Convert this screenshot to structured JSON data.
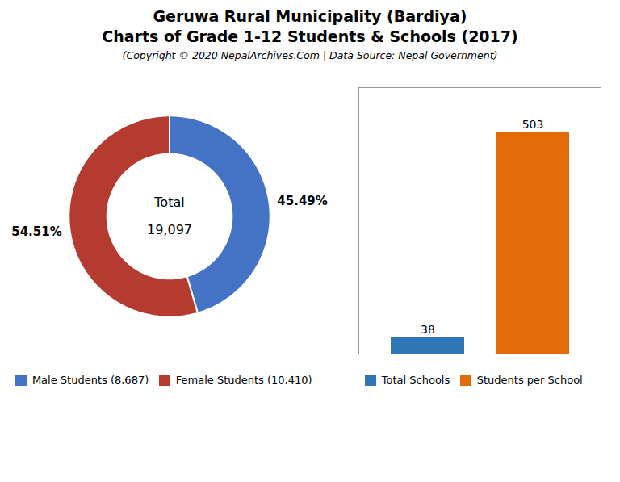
{
  "chart_data": [
    {
      "type": "pie",
      "title": "Geruwa Rural Municipality (Bardiya)\nCharts of Grade 1-12 Students & Schools (2017)",
      "subtitle": "(Copyright © 2020 NepalArchives.Com | Data Source: Nepal Government)",
      "categories": [
        "Male Students (8,687)",
        "Female Students (10,410)"
      ],
      "values": [
        45.49,
        54.51
      ],
      "value_labels": [
        "45.49%",
        "54.51%"
      ],
      "colors": [
        "#4472c4",
        "#b53a2f"
      ],
      "data_labels": true,
      "legend": "bottom",
      "annotations": [
        "Total",
        "19,097"
      ]
    },
    {
      "type": "bar",
      "categories": [
        "Total Schools",
        "Students per School"
      ],
      "values": [
        38,
        503
      ],
      "colors": [
        "#2e75b6",
        "#e36c09"
      ],
      "ylim": [
        0,
        603.6
      ],
      "data_labels": true,
      "tick_labels": false,
      "grid": false,
      "legend": "bottom"
    }
  ]
}
